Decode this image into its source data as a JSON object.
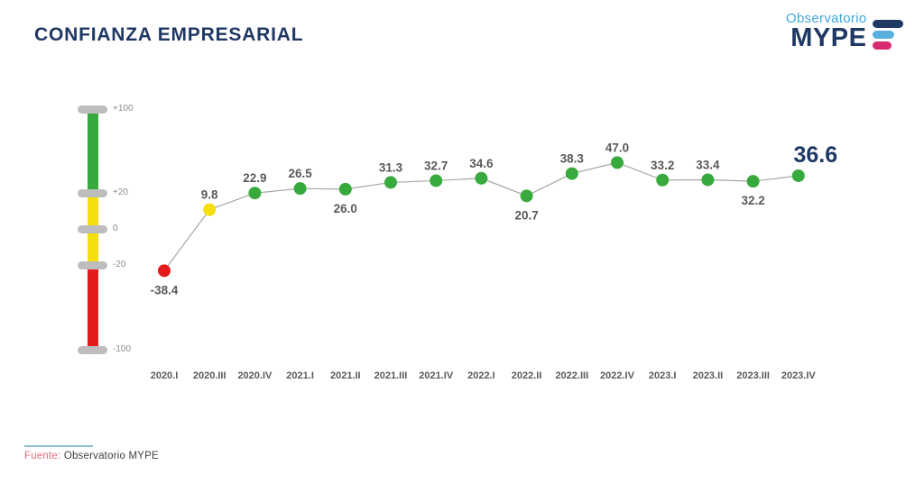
{
  "header": {
    "title": "CONFIANZA EMPRESARIAL",
    "logo": {
      "brand_top": "Observatorio",
      "brand_main": "MYPE"
    }
  },
  "gauge": {
    "tick_labels": [
      "+100",
      "+20",
      "0",
      "-20",
      "-100"
    ]
  },
  "chart_data": {
    "type": "line",
    "title": "CONFIANZA EMPRESARIAL",
    "categories": [
      "2020.I",
      "2020.III",
      "2020.IV",
      "2021.I",
      "2021.II",
      "2021.III",
      "2021.IV",
      "2022.I",
      "2022.II",
      "2022.III",
      "2022.IV",
      "2023.I",
      "2023.II",
      "2023.III",
      "2023.IV"
    ],
    "values": [
      -38.4,
      9.8,
      22.9,
      26.5,
      26.0,
      31.3,
      32.7,
      34.6,
      20.7,
      38.3,
      47.0,
      33.2,
      33.4,
      32.2,
      36.6
    ],
    "value_labels": [
      "-38.4",
      "9.8",
      "22.9",
      "26.5",
      "26.0",
      "31.3",
      "32.7",
      "34.6",
      "20.7",
      "38.3",
      "47.0",
      "33.2",
      "33.4",
      "32.2",
      "36.6"
    ],
    "point_colors": [
      "red",
      "yellow",
      "green",
      "green",
      "green",
      "green",
      "green",
      "green",
      "green",
      "green",
      "green",
      "green",
      "green",
      "green",
      "green"
    ],
    "label_placement": [
      "below",
      "above",
      "above",
      "above",
      "below",
      "above",
      "above",
      "above",
      "below",
      "above",
      "above",
      "above",
      "above",
      "below",
      "above"
    ],
    "highlight_last": true,
    "ylim": [
      -100,
      100
    ],
    "grid": false,
    "legend": false
  },
  "footer": {
    "source_label": "Fuente:",
    "source_text": "Observatorio MYPE"
  },
  "colors": {
    "navy": "#1F3864",
    "light_blue": "#41A8DE",
    "logo_bar_blue": "#59B0DF",
    "pink": "#D92A70",
    "green": "#38A93C",
    "yellow": "#F3DF0E",
    "red": "#E31B1C",
    "gauge_gray": "#BDBDBD",
    "line_gray": "#A6A6A6",
    "label_gray": "#595959",
    "tick_gray": "#8C8C8C",
    "source_pink": "#E4697D",
    "footer_line": "#8FBFD0",
    "footer_text": "#404040"
  }
}
